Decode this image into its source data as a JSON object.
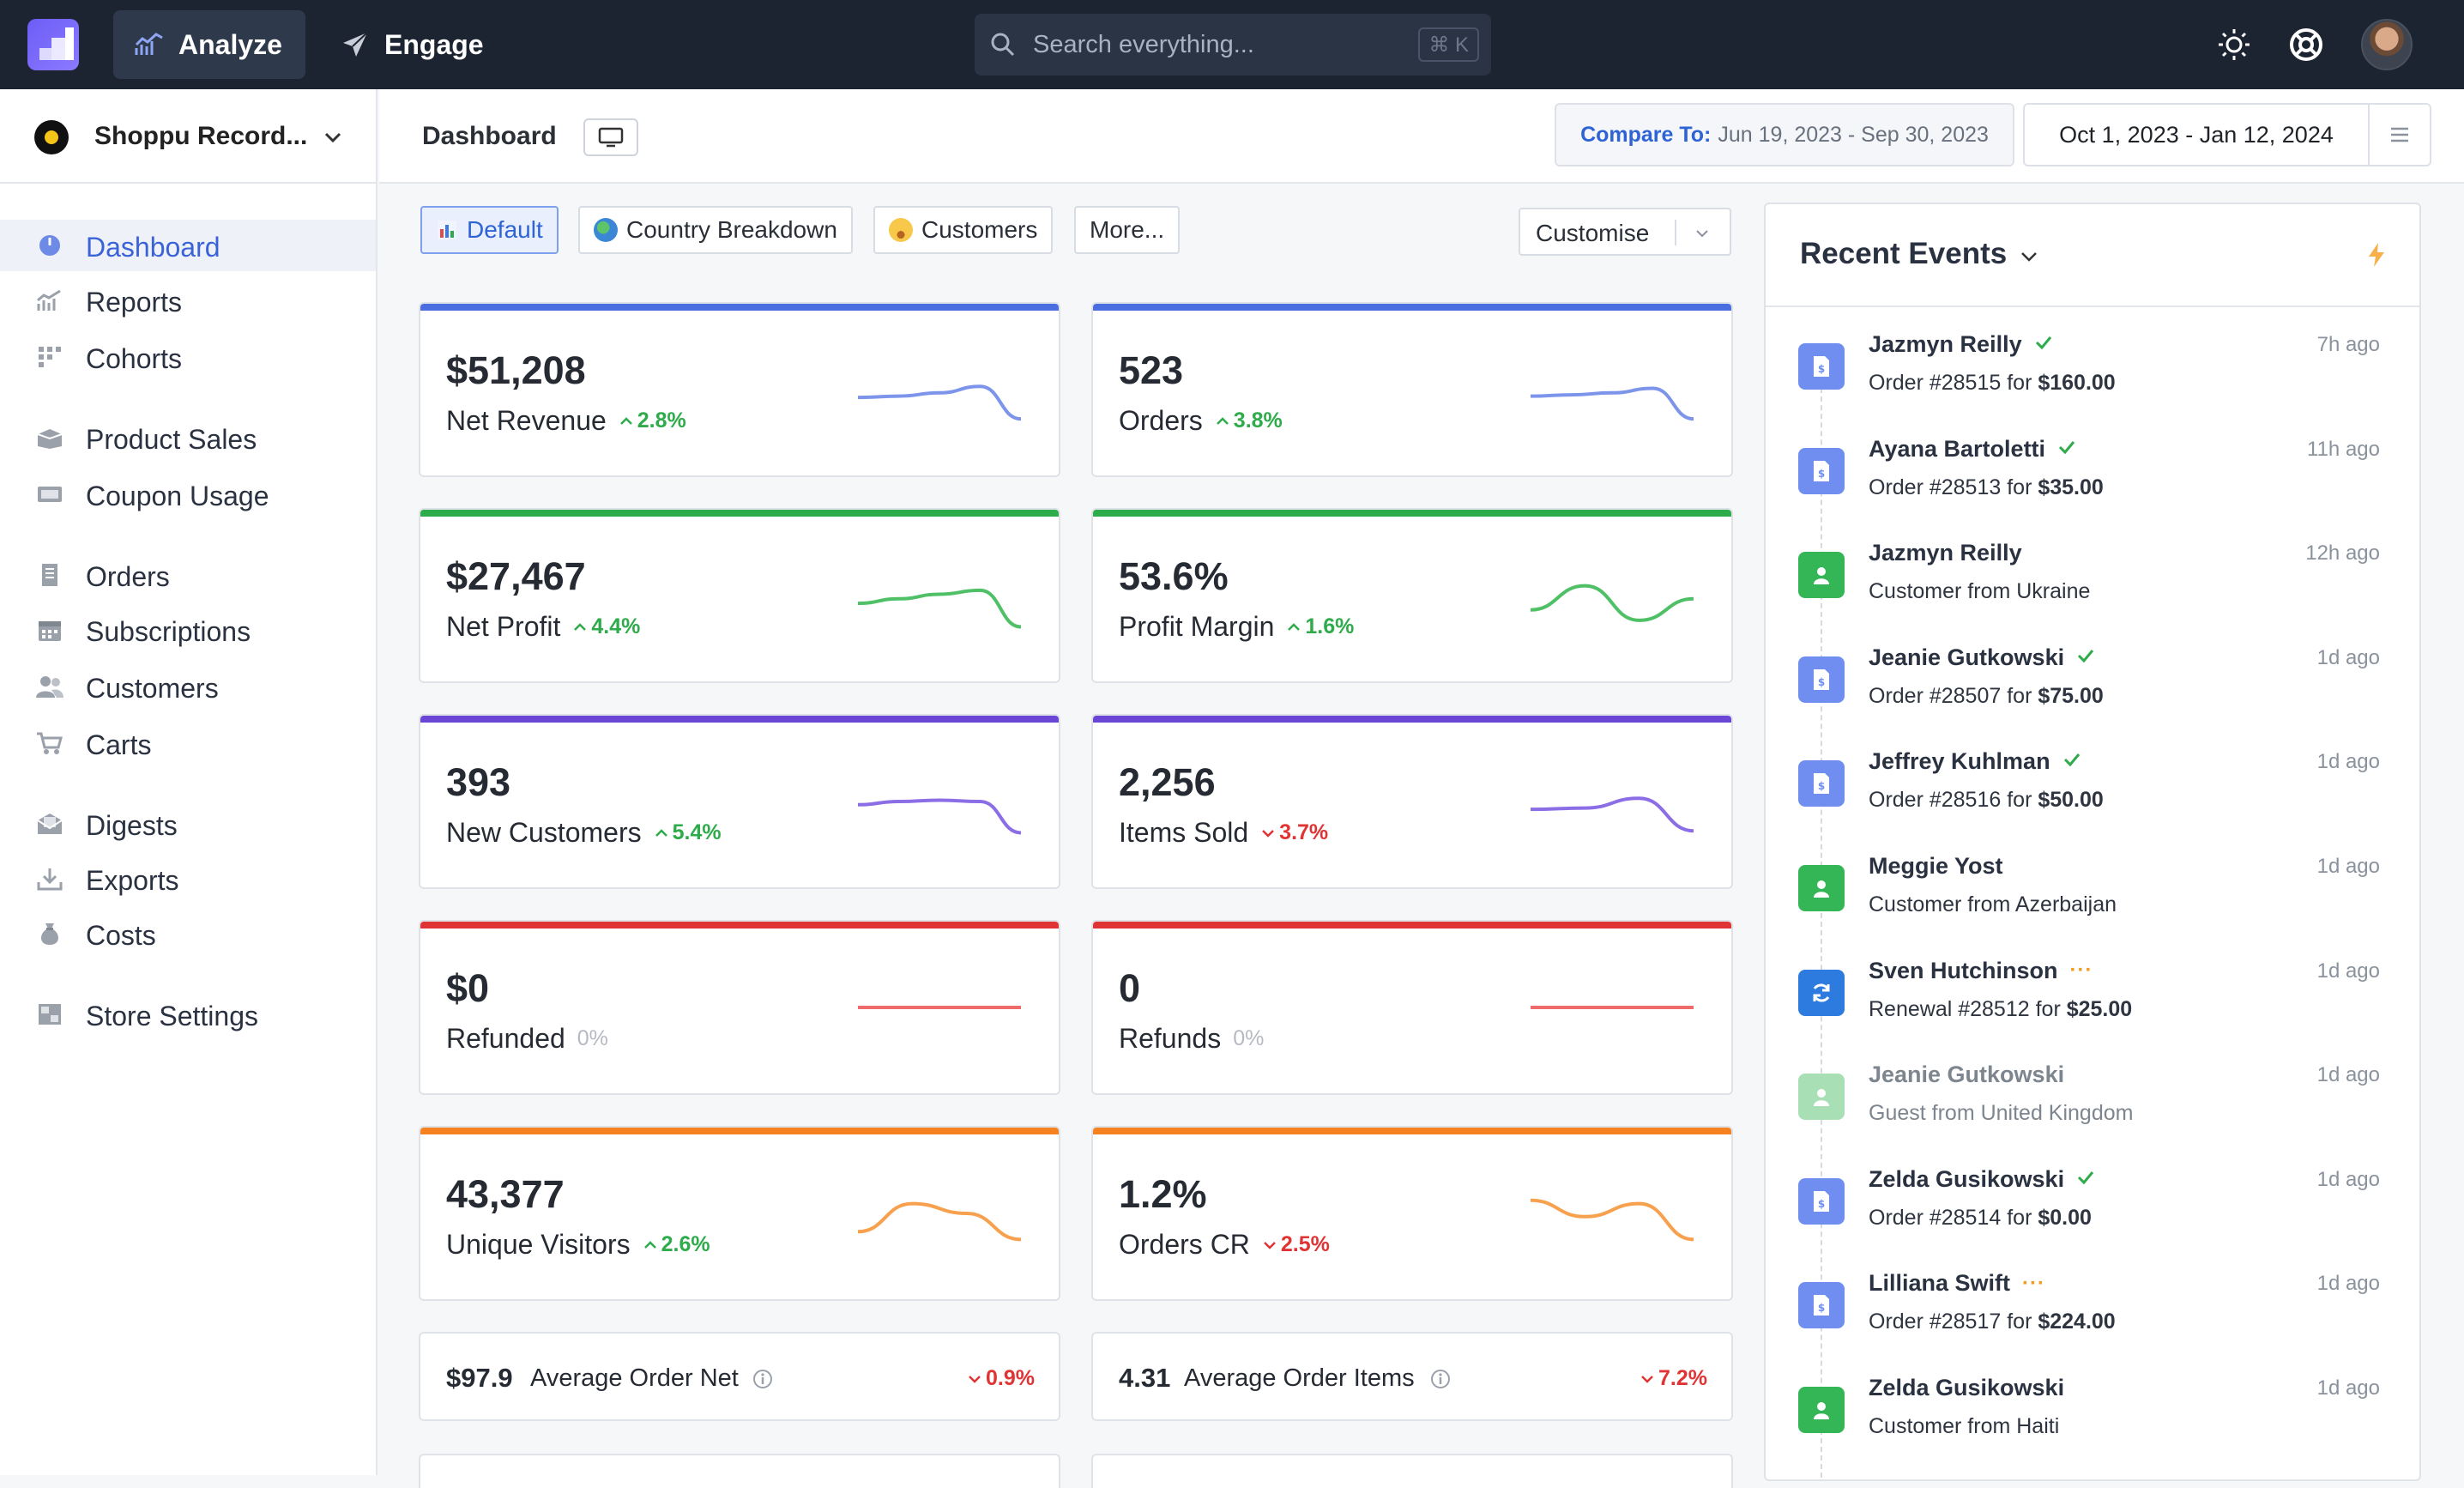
{
  "topbar": {
    "tabs": [
      {
        "label": "Analyze",
        "icon": "chart-line-icon",
        "active": true
      },
      {
        "label": "Engage",
        "icon": "paper-plane-icon",
        "active": false
      }
    ],
    "search_placeholder": "Search everything...",
    "search_shortcut": "⌘ K",
    "icons": [
      "sun-icon",
      "lifebuoy-icon",
      "user-avatar"
    ]
  },
  "sidebar": {
    "store_name": "Shoppu Record...",
    "items": [
      {
        "label": "Dashboard",
        "icon": "gauge-icon",
        "active": true
      },
      {
        "label": "Reports",
        "icon": "reports-chart-icon"
      },
      {
        "label": "Cohorts",
        "icon": "grid-dots-icon"
      },
      {
        "label": "Product Sales",
        "icon": "box-icon"
      },
      {
        "label": "Coupon Usage",
        "icon": "ticket-icon"
      },
      {
        "label": "Orders",
        "icon": "receipt-icon"
      },
      {
        "label": "Subscriptions",
        "icon": "calendar-icon"
      },
      {
        "label": "Customers",
        "icon": "users-icon"
      },
      {
        "label": "Carts",
        "icon": "cart-icon"
      },
      {
        "label": "Digests",
        "icon": "envelope-icon"
      },
      {
        "label": "Exports",
        "icon": "download-icon"
      },
      {
        "label": "Costs",
        "icon": "money-bag-icon"
      },
      {
        "label": "Store Settings",
        "icon": "settings-panel-icon"
      }
    ]
  },
  "header": {
    "title": "Dashboard",
    "compare_label": "Compare To:",
    "compare_range": "Jun 19, 2023 - Sep 30, 2023",
    "date_range": "Oct 1, 2023 - Jan 12, 2024"
  },
  "views": {
    "tabs": [
      "Default",
      "Country Breakdown",
      "Customers",
      "More..."
    ],
    "customise": "Customise"
  },
  "colors": {
    "blue": "#4a6ee0",
    "green": "#2eab4a",
    "purple": "#6b46d6",
    "red": "#e03434",
    "orange": "#f5821f",
    "spark_blue": "#7c95ea",
    "spark_green": "#4fc066",
    "spark_purple": "#8b6ee6",
    "spark_red": "#ef6b6b",
    "spark_orange": "#f7a04d"
  },
  "metrics": [
    {
      "value": "$51,208",
      "label": "Net Revenue",
      "change": "2.8%",
      "dir": "up",
      "color": "blue",
      "spark": [
        0.62,
        0.6,
        0.55,
        0.45,
        0.95
      ]
    },
    {
      "value": "523",
      "label": "Orders",
      "change": "3.8%",
      "dir": "up",
      "color": "blue",
      "spark": [
        0.6,
        0.58,
        0.55,
        0.48,
        0.95
      ]
    },
    {
      "value": "$27,467",
      "label": "Net Profit",
      "change": "4.4%",
      "dir": "up",
      "color": "green",
      "spark": [
        0.62,
        0.55,
        0.48,
        0.42,
        0.98
      ]
    },
    {
      "value": "53.6%",
      "label": "Profit Margin",
      "change": "1.6%",
      "dir": "up",
      "color": "green",
      "spark": [
        0.72,
        0.35,
        0.88,
        0.55
      ]
    },
    {
      "value": "393",
      "label": "New Customers",
      "change": "5.4%",
      "dir": "up",
      "color": "purple",
      "spark": [
        0.55,
        0.5,
        0.48,
        0.5,
        0.98
      ]
    },
    {
      "value": "2,256",
      "label": "Items Sold",
      "change": "3.7%",
      "dir": "down",
      "color": "purple",
      "spark": [
        0.62,
        0.6,
        0.45,
        0.95
      ]
    },
    {
      "value": "$0",
      "label": "Refunded",
      "change": "0%",
      "dir": "flat",
      "color": "red",
      "spark": [
        0.5,
        0.5
      ]
    },
    {
      "value": "0",
      "label": "Refunds",
      "change": "0%",
      "dir": "flat",
      "color": "red",
      "spark": [
        0.5,
        0.5
      ]
    },
    {
      "value": "43,377",
      "label": "Unique Visitors",
      "change": "2.6%",
      "dir": "up",
      "color": "orange",
      "spark": [
        0.78,
        0.35,
        0.5,
        0.9
      ]
    },
    {
      "value": "1.2%",
      "label": "Orders CR",
      "change": "2.5%",
      "dir": "down",
      "color": "orange",
      "spark": [
        0.3,
        0.55,
        0.35,
        0.9
      ]
    }
  ],
  "mini_metrics": [
    {
      "value": "$97.9",
      "label": "Average Order Net",
      "change": "0.9%",
      "dir": "down"
    },
    {
      "value": "4.31",
      "label": "Average Order Items",
      "change": "7.2%",
      "dir": "down"
    }
  ],
  "events": {
    "title": "Recent Events",
    "items": [
      {
        "name": "Jazmyn Reilly",
        "status": "check",
        "type": "order",
        "desc_prefix": "Order #28515 for ",
        "desc_amount": "$160.00",
        "time": "7h ago"
      },
      {
        "name": "Ayana Bartoletti",
        "status": "check",
        "type": "order",
        "desc_prefix": "Order #28513 for ",
        "desc_amount": "$35.00",
        "time": "11h ago"
      },
      {
        "name": "Jazmyn Reilly",
        "status": "",
        "type": "customer",
        "desc_prefix": "Customer from Ukraine",
        "desc_amount": "",
        "time": "12h ago"
      },
      {
        "name": "Jeanie Gutkowski",
        "status": "check",
        "type": "order",
        "desc_prefix": "Order #28507 for ",
        "desc_amount": "$75.00",
        "time": "1d ago"
      },
      {
        "name": "Jeffrey Kuhlman",
        "status": "check",
        "type": "order",
        "desc_prefix": "Order #28516 for ",
        "desc_amount": "$50.00",
        "time": "1d ago"
      },
      {
        "name": "Meggie Yost",
        "status": "",
        "type": "customer",
        "desc_prefix": "Customer from Azerbaijan",
        "desc_amount": "",
        "time": "1d ago"
      },
      {
        "name": "Sven Hutchinson",
        "status": "pending",
        "type": "renewal",
        "desc_prefix": "Renewal #28512 for ",
        "desc_amount": "$25.00",
        "time": "1d ago"
      },
      {
        "name": "Jeanie Gutkowski",
        "status": "",
        "type": "guest",
        "desc_prefix": "Guest from United Kingdom",
        "desc_amount": "",
        "time": "1d ago"
      },
      {
        "name": "Zelda Gusikowski",
        "status": "check",
        "type": "order",
        "desc_prefix": "Order #28514 for ",
        "desc_amount": "$0.00",
        "time": "1d ago"
      },
      {
        "name": "Lilliana Swift",
        "status": "pending",
        "type": "order",
        "desc_prefix": "Order #28517 for ",
        "desc_amount": "$224.00",
        "time": "1d ago"
      },
      {
        "name": "Zelda Gusikowski",
        "status": "",
        "type": "customer",
        "desc_prefix": "Customer from Haiti",
        "desc_amount": "",
        "time": "1d ago"
      }
    ]
  }
}
